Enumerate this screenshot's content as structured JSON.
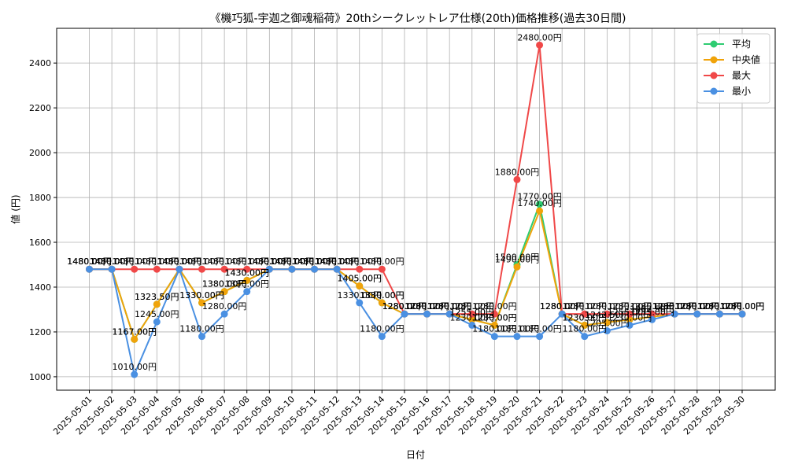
{
  "chart_data": {
    "type": "line",
    "title": "《機巧狐-宇迦之御魂稲荷》20thシークレットレア仕様(20th)価格推移(過去30日間)",
    "xlabel": "日付",
    "ylabel": "値 (円)",
    "ylim": [
      940,
      2555
    ],
    "yticks": [
      1000,
      1200,
      1400,
      1600,
      1800,
      2000,
      2200,
      2400
    ],
    "grid": true,
    "legend_position": "top-right",
    "label_suffix": "円",
    "x": [
      "2025-05-01",
      "2025-05-02",
      "2025-05-03",
      "2025-05-04",
      "2025-05-05",
      "2025-05-06",
      "2025-05-07",
      "2025-05-08",
      "2025-05-09",
      "2025-05-10",
      "2025-05-11",
      "2025-05-12",
      "2025-05-13",
      "2025-05-14",
      "2025-05-15",
      "2025-05-16",
      "2025-05-17",
      "2025-05-18",
      "2025-05-19",
      "2025-05-20",
      "2025-05-21",
      "2025-05-22",
      "2025-05-23",
      "2025-05-24",
      "2025-05-25",
      "2025-05-26",
      "2025-05-27",
      "2025-05-28",
      "2025-05-29",
      "2025-05-30"
    ],
    "series": [
      {
        "name": "平均",
        "color": "#2ecc71",
        "values": [
          1480,
          1480,
          1167,
          1323.5,
          1480,
          1330,
          1380,
          1430,
          1480,
          1480,
          1480,
          1480,
          1405,
          1330,
          1280,
          1280,
          1280,
          1255,
          1230,
          1500,
          1770,
          1280,
          1230,
          1242.5,
          1255,
          1267.5,
          1280,
          1280,
          1280,
          1280
        ]
      },
      {
        "name": "中央値",
        "color": "#f0a30a",
        "values": [
          1480,
          1480,
          1167,
          1323.5,
          1480,
          1330,
          1380,
          1430,
          1480,
          1480,
          1480,
          1480,
          1405,
          1330,
          1280,
          1280,
          1280,
          1255,
          1230,
          1490,
          1740,
          1280,
          1230,
          1242.5,
          1255,
          1267.5,
          1280,
          1280,
          1280,
          1280
        ]
      },
      {
        "name": "最大",
        "color": "#f04848",
        "values": [
          1480,
          1480,
          1480,
          1480,
          1480,
          1480,
          1480,
          1480,
          1480,
          1480,
          1480,
          1480,
          1480,
          1480,
          1280,
          1280,
          1280,
          1280,
          1280,
          1880,
          2480,
          1280,
          1280,
          1280,
          1280,
          1280,
          1280,
          1280,
          1280,
          1280
        ]
      },
      {
        "name": "最小",
        "color": "#4a90e2",
        "values": [
          1480,
          1480,
          1010,
          1245,
          1480,
          1180,
          1280,
          1380,
          1480,
          1480,
          1480,
          1480,
          1330,
          1180,
          1280,
          1280,
          1280,
          1230,
          1180,
          1180,
          1180,
          1280,
          1180,
          1205,
          1230,
          1255,
          1280,
          1280,
          1280,
          1280
        ]
      }
    ]
  }
}
